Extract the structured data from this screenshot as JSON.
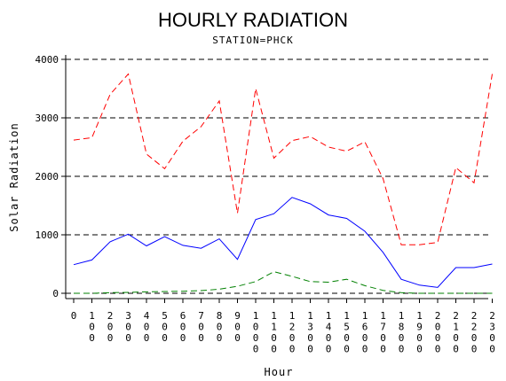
{
  "chart_data": {
    "type": "line",
    "title": "HOURLY RADIATION",
    "subtitle": "STATION=PHCK",
    "xlabel": "Hour",
    "ylabel": "Solar Radiation",
    "ylim": [
      0,
      4000
    ],
    "yticks": [
      0,
      1000,
      2000,
      3000,
      4000
    ],
    "categories": [
      "0",
      "100",
      "200",
      "300",
      "400",
      "500",
      "600",
      "700",
      "800",
      "900",
      "1000",
      "1100",
      "1200",
      "1300",
      "1400",
      "1500",
      "1600",
      "1700",
      "1800",
      "1900",
      "2000",
      "2100",
      "2200",
      "2300"
    ],
    "grid": "horizontal dashed",
    "series": [
      {
        "color": "#ff0000",
        "style": "dashed",
        "values": [
          2620,
          2660,
          3400,
          3750,
          2380,
          2130,
          2600,
          2850,
          3290,
          1370,
          3500,
          2310,
          2610,
          2680,
          2500,
          2430,
          2590,
          1960,
          830,
          830,
          870,
          2150,
          1890,
          3750
        ]
      },
      {
        "color": "#0000ff",
        "style": "solid",
        "values": [
          490,
          570,
          880,
          1010,
          810,
          970,
          820,
          770,
          930,
          580,
          1260,
          1360,
          1640,
          1530,
          1340,
          1280,
          1060,
          700,
          240,
          140,
          100,
          440,
          440,
          500
        ]
      },
      {
        "color": "#008000",
        "style": "dashed",
        "values": [
          0,
          0,
          10,
          15,
          25,
          30,
          35,
          45,
          70,
          120,
          200,
          370,
          290,
          200,
          190,
          240,
          130,
          50,
          10,
          0,
          0,
          0,
          0,
          0
        ]
      }
    ]
  }
}
